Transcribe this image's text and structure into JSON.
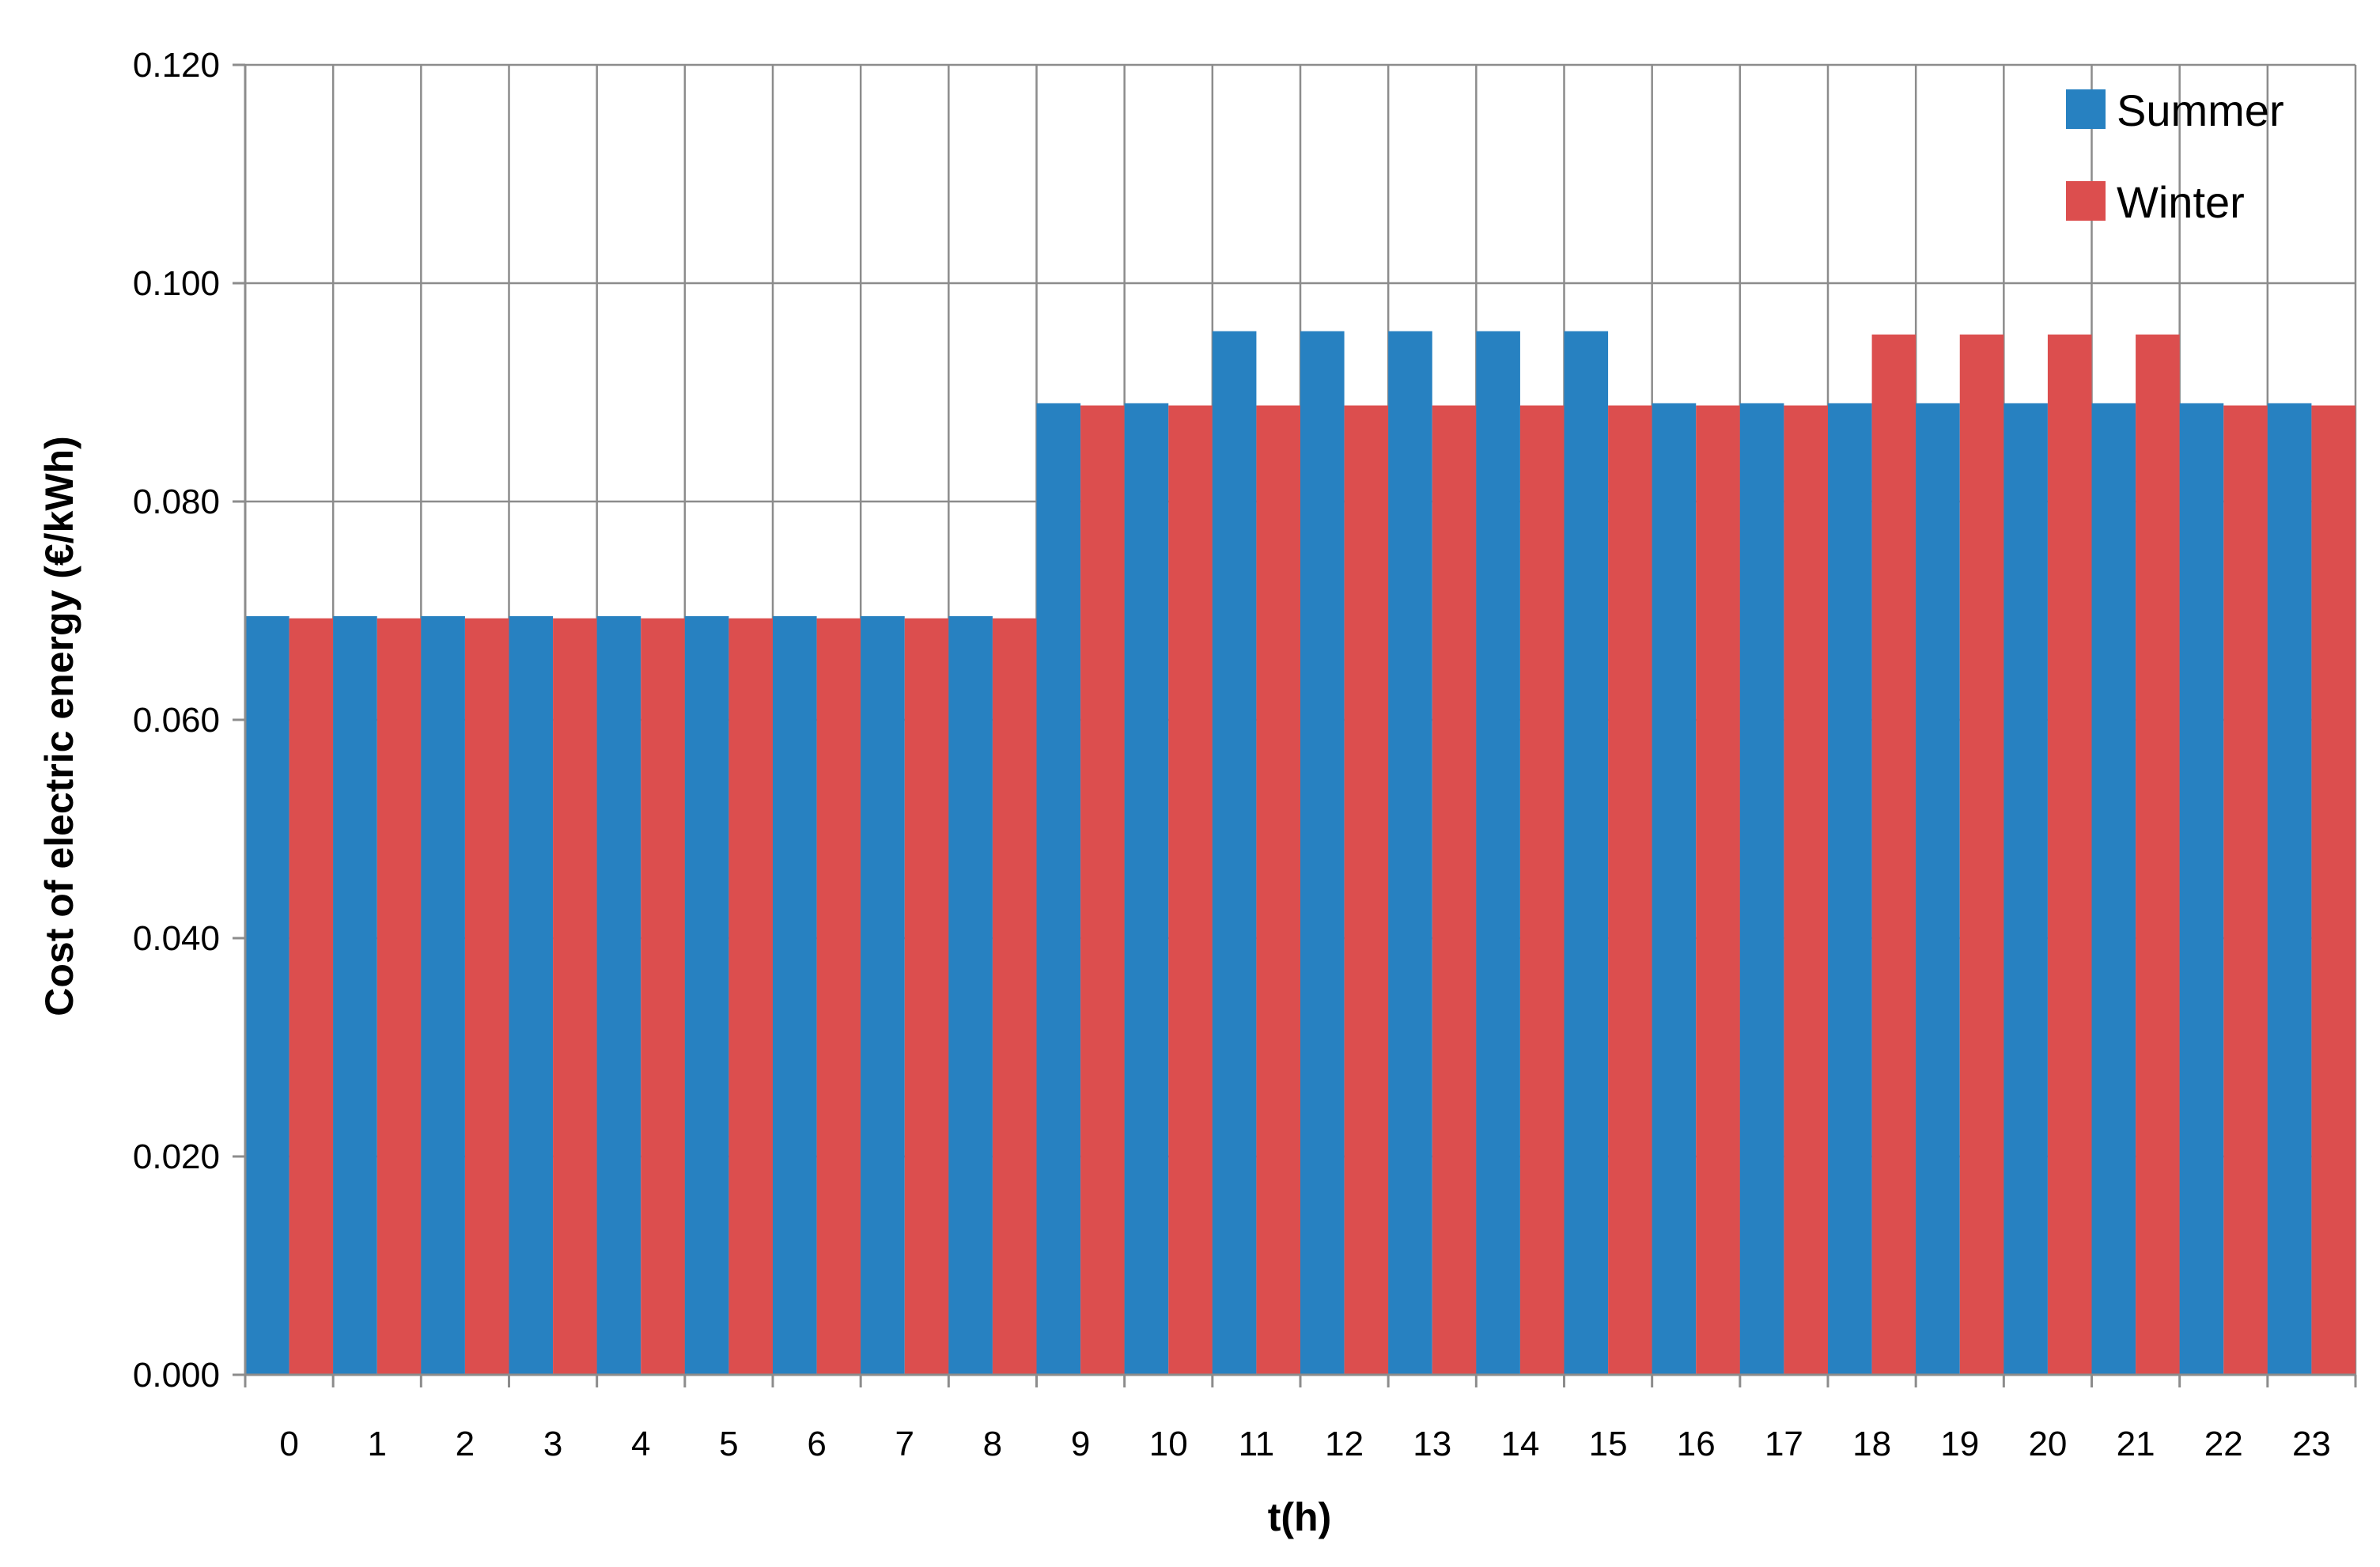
{
  "chart_data": {
    "type": "bar",
    "xlabel": "t(h)",
    "ylabel": "Cost of electric energy (€/kWh)",
    "ylim": [
      0,
      0.12
    ],
    "yticks": [
      "0.000",
      "0.020",
      "0.040",
      "0.060",
      "0.080",
      "0.100",
      "0.120"
    ],
    "ytick_values": [
      0,
      0.02,
      0.04,
      0.06,
      0.08,
      0.1,
      0.12
    ],
    "categories": [
      "0",
      "1",
      "2",
      "3",
      "4",
      "5",
      "6",
      "7",
      "8",
      "9",
      "10",
      "11",
      "12",
      "13",
      "14",
      "15",
      "16",
      "17",
      "18",
      "19",
      "20",
      "21",
      "22",
      "23"
    ],
    "grid": true,
    "legend_position": "top-right",
    "series": [
      {
        "name": "Summer",
        "color": "#2781c1",
        "values": [
          0.0695,
          0.0695,
          0.0695,
          0.0695,
          0.0695,
          0.0695,
          0.0695,
          0.0695,
          0.0695,
          0.089,
          0.089,
          0.0956,
          0.0956,
          0.0956,
          0.0956,
          0.0956,
          0.089,
          0.089,
          0.089,
          0.089,
          0.089,
          0.089,
          0.089,
          0.089
        ]
      },
      {
        "name": "Winter",
        "color": "#dc4e4e",
        "values": [
          0.0693,
          0.0693,
          0.0693,
          0.0693,
          0.0693,
          0.0693,
          0.0693,
          0.0693,
          0.0693,
          0.0888,
          0.0888,
          0.0888,
          0.0888,
          0.0888,
          0.0888,
          0.0888,
          0.0888,
          0.0888,
          0.0953,
          0.0953,
          0.0953,
          0.0953,
          0.0888,
          0.0888
        ]
      }
    ]
  }
}
